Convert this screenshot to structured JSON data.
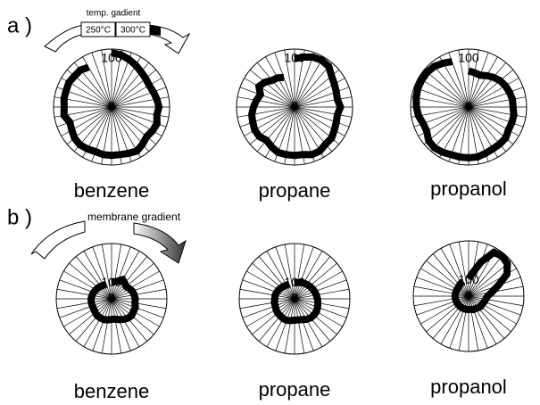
{
  "panel_labels": [
    "a )",
    "b )"
  ],
  "annotations": {
    "top_gradient": "temp. gadient",
    "low_temp": "250°C",
    "high_temp": "300°C",
    "bottom_gradient": "membrane gradient"
  },
  "chart_data": [
    {
      "type": "radar",
      "title": "benzene",
      "rlim": [
        0,
        120
      ],
      "rticks": [
        0,
        100
      ],
      "values": [
        112,
        110,
        105,
        100,
        95,
        92,
        90,
        92,
        95,
        98,
        95,
        100,
        98,
        95,
        100,
        105,
        102,
        100,
        100,
        100,
        98,
        100,
        102,
        100,
        95,
        92,
        100,
        98,
        100,
        100,
        102,
        100,
        100,
        95,
        null,
        null
      ]
    },
    {
      "type": "radar",
      "title": "propane",
      "rlim": [
        0,
        120
      ],
      "rticks": [
        0,
        100
      ],
      "values": [
        100,
        105,
        110,
        112,
        110,
        100,
        95,
        92,
        90,
        95,
        90,
        92,
        95,
        100,
        100,
        105,
        105,
        100,
        100,
        100,
        100,
        95,
        90,
        95,
        95,
        92,
        90,
        85,
        80,
        75,
        85,
        80,
        72,
        70,
        65,
        null
      ]
    },
    {
      "type": "radar",
      "title": "propanol",
      "rlim": [
        0,
        120
      ],
      "rticks": [
        0,
        100
      ],
      "values": [
        75,
        72,
        70,
        75,
        80,
        85,
        88,
        90,
        92,
        92,
        95,
        95,
        95,
        100,
        100,
        100,
        102,
        105,
        105,
        105,
        105,
        108,
        110,
        108,
        100,
        100,
        105,
        108,
        110,
        112,
        112,
        112,
        110,
        105,
        100,
        null
      ]
    },
    {
      "type": "radar",
      "title": "benzene",
      "rlim": [
        0,
        350
      ],
      "rticks": [
        0,
        100
      ],
      "values": [
        105,
        110,
        120,
        140,
        130,
        120,
        130,
        140,
        145,
        150,
        150,
        160,
        160,
        165,
        160,
        150,
        140,
        130,
        130,
        135,
        140,
        140,
        140,
        135,
        130,
        130,
        130,
        130,
        125,
        120,
        115,
        110,
        105,
        100,
        100,
        null
      ]
    },
    {
      "type": "radar",
      "title": "propane",
      "rlim": [
        0,
        350
      ],
      "rticks": [
        0,
        100
      ],
      "values": [
        100,
        105,
        110,
        115,
        120,
        125,
        130,
        135,
        140,
        145,
        150,
        155,
        160,
        160,
        158,
        150,
        140,
        135,
        135,
        140,
        145,
        145,
        140,
        140,
        135,
        130,
        130,
        125,
        125,
        120,
        115,
        110,
        105,
        100,
        100,
        null
      ]
    },
    {
      "type": "radar",
      "title": "propanol",
      "rlim": [
        0,
        350
      ],
      "rticks": [
        0,
        100
      ],
      "values": [
        110,
        150,
        230,
        320,
        330,
        320,
        280,
        200,
        150,
        120,
        110,
        105,
        100,
        100,
        95,
        90,
        90,
        85,
        85,
        85,
        85,
        85,
        85,
        85,
        85,
        85,
        85,
        85,
        85,
        85,
        85,
        85,
        90,
        95,
        100,
        null
      ]
    }
  ]
}
